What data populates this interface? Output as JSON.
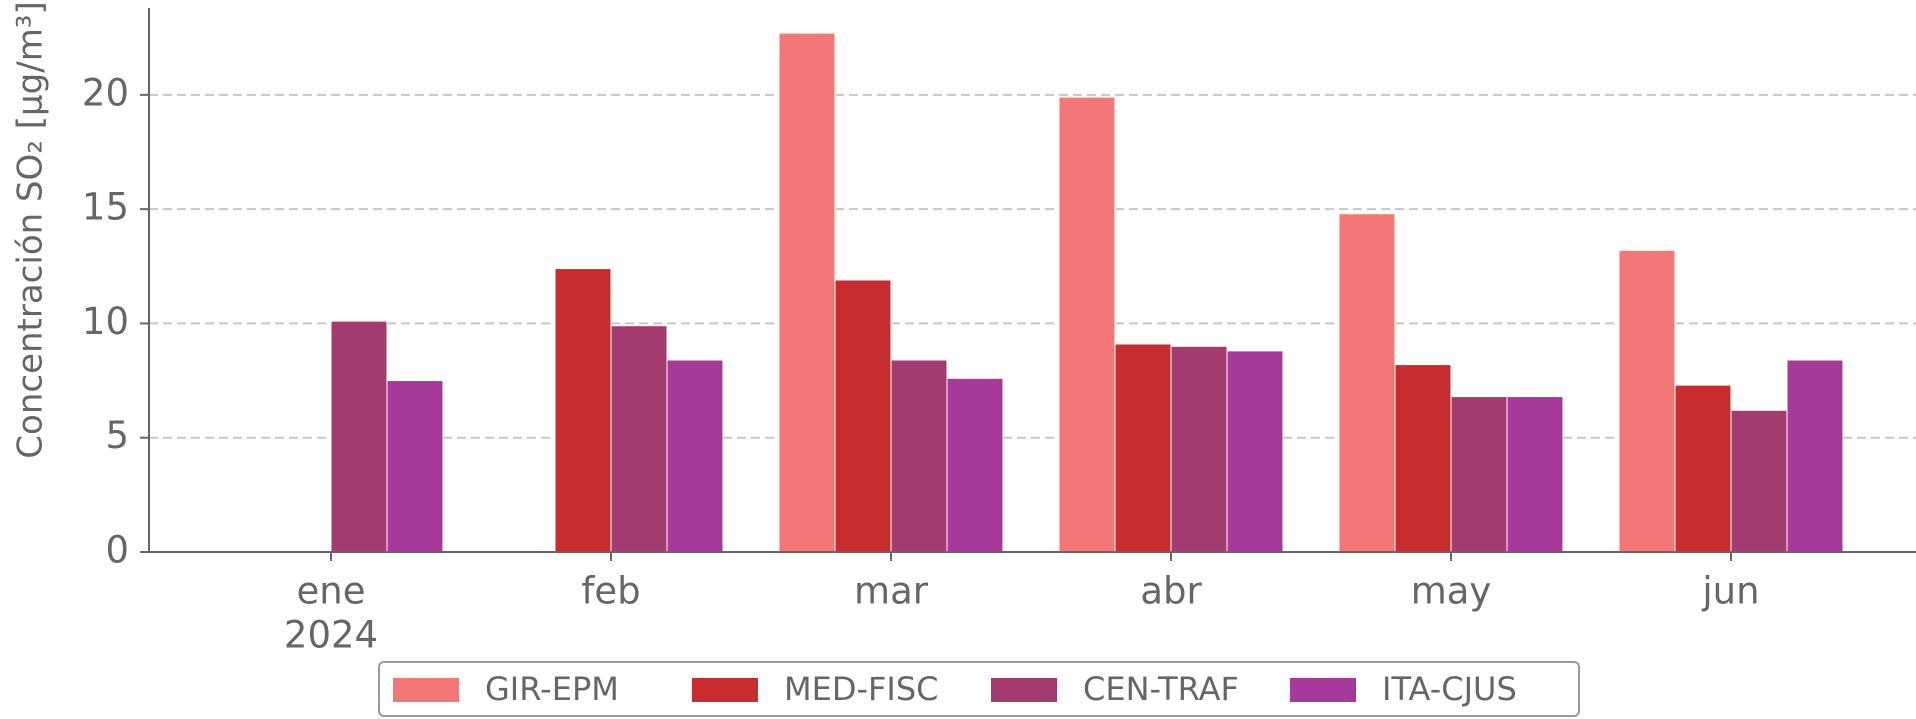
{
  "chart_data": {
    "type": "bar",
    "ylabel": "Concentración SO₂ [µg/m³]",
    "categories": [
      "ene",
      "feb",
      "mar",
      "abr",
      "may",
      "jun"
    ],
    "year_label": "2024",
    "series": [
      {
        "name": "GIR-EPM",
        "color": "#f47777",
        "values": [
          null,
          null,
          22.7,
          19.9,
          14.8,
          13.2
        ]
      },
      {
        "name": "MED-FISC",
        "color": "#c72d2e",
        "values": [
          null,
          12.4,
          11.9,
          9.1,
          8.2,
          7.3
        ]
      },
      {
        "name": "CEN-TRAF",
        "color": "#a33b6e",
        "values": [
          10.1,
          9.9,
          8.4,
          9.0,
          6.8,
          6.2
        ]
      },
      {
        "name": "ITA-CJUS",
        "color": "#a63a9a",
        "values": [
          7.5,
          8.4,
          7.6,
          8.8,
          6.8,
          8.4
        ]
      }
    ],
    "ylim": [
      0,
      23.8
    ],
    "yticks": [
      0,
      5,
      10,
      15,
      20
    ],
    "grid": true,
    "legend": "bottom"
  }
}
